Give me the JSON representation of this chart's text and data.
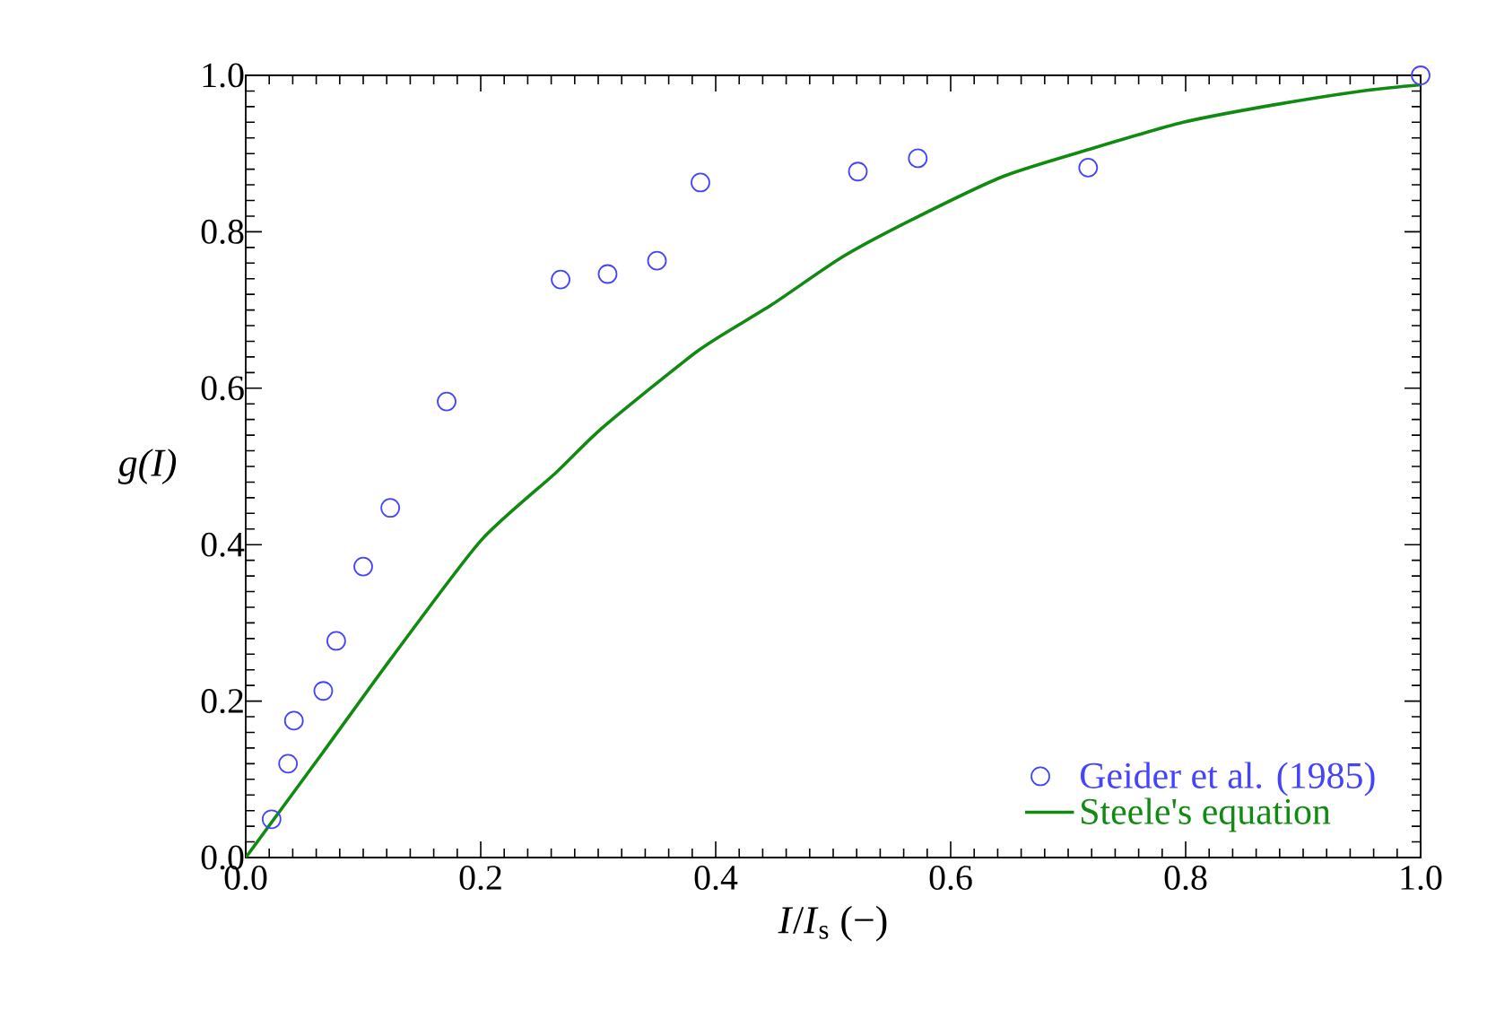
{
  "chart_data": {
    "type": "scatter",
    "xlabel": "*I*/*I*$_{s}$ (−)",
    "ylabel": "g(I)",
    "xlim": [
      0,
      1
    ],
    "ylim": [
      0,
      1
    ],
    "xticks": [
      {
        "value": 0,
        "label": "0.0"
      },
      {
        "value": 0.2,
        "label": "0.2"
      },
      {
        "value": 0.4,
        "label": "0.4"
      },
      {
        "value": 0.6,
        "label": "0.6"
      },
      {
        "value": 0.8,
        "label": "0.8"
      },
      {
        "value": 1,
        "label": "1.0"
      }
    ],
    "yticks": [
      {
        "value": 0,
        "label": "0.0"
      },
      {
        "value": 0.2,
        "label": "0.2"
      },
      {
        "value": 0.4,
        "label": "0.4"
      },
      {
        "value": 0.6,
        "label": "0.6"
      },
      {
        "value": 0.8,
        "label": "0.8"
      },
      {
        "value": 1,
        "label": "1.0"
      }
    ],
    "legend": "bottom right",
    "marker": "circle",
    "series": [
      {
        "name": "Geider et al. (1985)",
        "color": "#4444ff",
        "x": [
          0.022,
          0.036,
          0.041,
          0.066,
          0.077,
          0.1,
          0.123,
          0.171,
          0.268,
          0.308,
          0.35,
          0.387,
          0.521,
          0.572,
          0.717,
          1.0
        ],
        "values": [
          0.049,
          0.12,
          0.175,
          0.213,
          0.277,
          0.372,
          0.447,
          0.583,
          0.739,
          0.746,
          0.763,
          0.863,
          0.877,
          0.894,
          0.882,
          1.0
        ]
      },
      {
        "name": "Steele's equation",
        "type": "line",
        "color": "#108a10",
        "marker": "none",
        "line_style": "solid",
        "x": [
          0,
          0.065,
          0.124,
          0.2,
          0.264,
          0.304,
          0.386,
          0.447,
          0.508,
          0.569,
          0.645,
          0.717,
          0.798,
          0.874,
          0.95,
          1.0
        ],
        "values": [
          0,
          0.133,
          0.255,
          0.405,
          0.492,
          0.55,
          0.649,
          0.706,
          0.768,
          0.817,
          0.871,
          0.905,
          0.94,
          0.962,
          0.98,
          0.988
        ]
      }
    ]
  }
}
